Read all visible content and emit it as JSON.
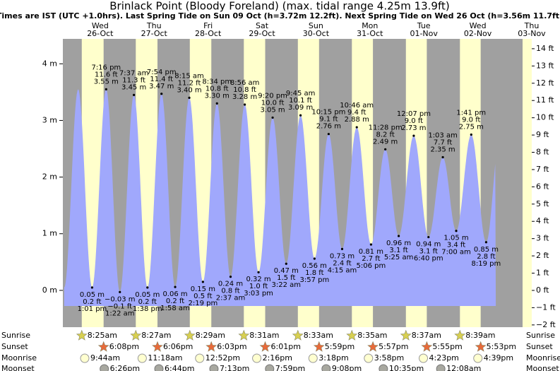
{
  "chart_data": {
    "type": "tide",
    "title": "Brinlack Point (Bloody Foreland) (max. tidal range 4.25m 13.9ft)",
    "subtitle": "Times are IST (UTC +1.0hrs). Last Spring Tide on Sun 09 Oct (h=3.72m 12.2ft). Next Spring Tide on Wed 26 Oct (h=3.56m 11.7ft)",
    "ylim": [
      -0.65,
      4.44
    ],
    "yticks": [
      {
        "value": 0,
        "label": "0 m"
      },
      {
        "value": 1,
        "label": "1 m"
      },
      {
        "value": 2,
        "label": "2 m"
      },
      {
        "value": 3,
        "label": "3 m"
      },
      {
        "value": 4,
        "label": "4 m"
      }
    ],
    "y2lim": [
      -2.13,
      14.57
    ],
    "y2ticks": [
      {
        "value": -2,
        "label": "−2 ft"
      },
      {
        "value": -1,
        "label": "−1 ft"
      },
      {
        "value": 0,
        "label": "0 ft"
      },
      {
        "value": 1,
        "label": "1 ft"
      },
      {
        "value": 2,
        "label": "2 ft"
      },
      {
        "value": 3,
        "label": "3 ft"
      },
      {
        "value": 4,
        "label": "4 ft"
      },
      {
        "value": 5,
        "label": "5 ft"
      },
      {
        "value": 6,
        "label": "6 ft"
      },
      {
        "value": 7,
        "label": "7 ft"
      },
      {
        "value": 8,
        "label": "8 ft"
      },
      {
        "value": 9,
        "label": "9 ft"
      },
      {
        "value": 10,
        "label": "10 ft"
      },
      {
        "value": 11,
        "label": "11 ft"
      },
      {
        "value": 12,
        "label": "12 ft"
      },
      {
        "value": 13,
        "label": "13 ft"
      },
      {
        "value": 14,
        "label": "14 ft"
      }
    ],
    "colors": {
      "water": "#a0a8fc",
      "night": "#a0a0a0",
      "day": "#ffffcc",
      "date": "#d00000"
    },
    "rows": {
      "sunrise": "Sunrise",
      "sunset": "Sunset",
      "moonrise": "Moonrise",
      "moonset": "Moonset"
    },
    "days": [
      {
        "weekday": "Wed",
        "date": "26-Oct",
        "sunrise": "8:25am",
        "sunset": "6:08pm",
        "moonrise": "9:44am",
        "moonset": "6:26pm"
      },
      {
        "weekday": "Thu",
        "date": "27-Oct",
        "sunrise": "8:27am",
        "sunset": "6:06pm",
        "moonrise": "11:18am",
        "moonset": "6:44pm"
      },
      {
        "weekday": "Fri",
        "date": "28-Oct",
        "sunrise": "8:29am",
        "sunset": "6:03pm",
        "moonrise": "12:52pm",
        "moonset": "7:13pm"
      },
      {
        "weekday": "Sat",
        "date": "29-Oct",
        "sunrise": "8:31am",
        "sunset": "6:01pm",
        "moonrise": "2:16pm",
        "moonset": "7:59pm"
      },
      {
        "weekday": "Sun",
        "date": "30-Oct",
        "sunrise": "8:33am",
        "sunset": "5:59pm",
        "moonrise": "3:18pm",
        "moonset": "9:08pm"
      },
      {
        "weekday": "Mon",
        "date": "31-Oct",
        "sunrise": "8:35am",
        "sunset": "5:57pm",
        "moonrise": "3:58pm",
        "moonset": "10:35pm"
      },
      {
        "weekday": "Tue",
        "date": "01-Nov",
        "sunrise": "8:37am",
        "sunset": "5:55pm",
        "moonrise": "4:23pm",
        "moonset": null
      },
      {
        "weekday": "Wed",
        "date": "02-Nov",
        "sunrise": "8:39am",
        "sunset": "5:53pm",
        "moonrise": "4:39pm",
        "moonset": "12:08am"
      },
      {
        "weekday": "Thu",
        "date": "03-Nov",
        "sunrise": null,
        "sunset": null,
        "moonrise": null,
        "moonset": null
      }
    ],
    "tides": [
      {
        "time": "1:01 pm",
        "height": 0.05,
        "height_label": "0.05 m",
        "height_ft": "0.2 ft"
      },
      {
        "time": "7:16 pm",
        "height": 3.55,
        "height_label": "3.55 m",
        "height_ft": "11.6 ft"
      },
      {
        "time": "1:22 am",
        "height": -0.03,
        "height_label": "−0.03 m",
        "height_ft": "−0.1 ft"
      },
      {
        "time": "7:37 am",
        "height": 3.45,
        "height_label": "3.45 m",
        "height_ft": "11.3 ft"
      },
      {
        "time": "1:38 pm",
        "height": 0.05,
        "height_label": "0.05 m",
        "height_ft": "0.2 ft"
      },
      {
        "time": "7:54 pm",
        "height": 3.47,
        "height_label": "3.47 m",
        "height_ft": "11.4 ft"
      },
      {
        "time": "1:58 am",
        "height": 0.06,
        "height_label": "0.06 m",
        "height_ft": "0.2 ft"
      },
      {
        "time": "8:15 am",
        "height": 3.4,
        "height_label": "3.40 m",
        "height_ft": "11.2 ft"
      },
      {
        "time": "2:19 pm",
        "height": 0.15,
        "height_label": "0.15 m",
        "height_ft": "0.5 ft"
      },
      {
        "time": "8:34 pm",
        "height": 3.3,
        "height_label": "3.30 m",
        "height_ft": "10.8 ft"
      },
      {
        "time": "2:37 am",
        "height": 0.24,
        "height_label": "0.24 m",
        "height_ft": "0.8 ft"
      },
      {
        "time": "8:56 am",
        "height": 3.28,
        "height_label": "3.28 m",
        "height_ft": "10.8 ft"
      },
      {
        "time": "3:03 pm",
        "height": 0.32,
        "height_label": "0.32 m",
        "height_ft": "1.0 ft"
      },
      {
        "time": "9:20 pm",
        "height": 3.05,
        "height_label": "3.05 m",
        "height_ft": "10.0 ft"
      },
      {
        "time": "3:22 am",
        "height": 0.47,
        "height_label": "0.47 m",
        "height_ft": "1.5 ft"
      },
      {
        "time": "9:45 am",
        "height": 3.09,
        "height_label": "3.09 m",
        "height_ft": "10.1 ft"
      },
      {
        "time": "3:57 pm",
        "height": 0.56,
        "height_label": "0.56 m",
        "height_ft": "1.8 ft"
      },
      {
        "time": "10:15 pm",
        "height": 2.76,
        "height_label": "2.76 m",
        "height_ft": "9.1 ft"
      },
      {
        "time": "4:15 am",
        "height": 0.73,
        "height_label": "0.73 m",
        "height_ft": "2.4 ft"
      },
      {
        "time": "10:46 am",
        "height": 2.88,
        "height_label": "2.88 m",
        "height_ft": "9.4 ft"
      },
      {
        "time": "5:06 pm",
        "height": 0.81,
        "height_label": "0.81 m",
        "height_ft": "2.7 ft"
      },
      {
        "time": "11:28 pm",
        "height": 2.49,
        "height_label": "2.49 m",
        "height_ft": "8.2 ft"
      },
      {
        "time": "5:25 am",
        "height": 0.96,
        "height_label": "0.96 m",
        "height_ft": "3.1 ft"
      },
      {
        "time": "12:07 pm",
        "height": 2.73,
        "height_label": "2.73 m",
        "height_ft": "9.0 ft"
      },
      {
        "time": "6:40 pm",
        "height": 0.94,
        "height_label": "0.94 m",
        "height_ft": "3.1 ft"
      },
      {
        "time": "1:03 am",
        "height": 2.35,
        "height_label": "2.35 m",
        "height_ft": "7.7 ft"
      },
      {
        "time": "7:00 am",
        "height": 1.05,
        "height_label": "1.05 m",
        "height_ft": "3.4 ft"
      },
      {
        "time": "1:41 pm",
        "height": 2.75,
        "height_label": "2.75 m",
        "height_ft": "9.0 ft"
      },
      {
        "time": "8:19 pm",
        "height": 0.85,
        "height_label": "0.85 m",
        "height_ft": "2.8 ft"
      }
    ]
  }
}
